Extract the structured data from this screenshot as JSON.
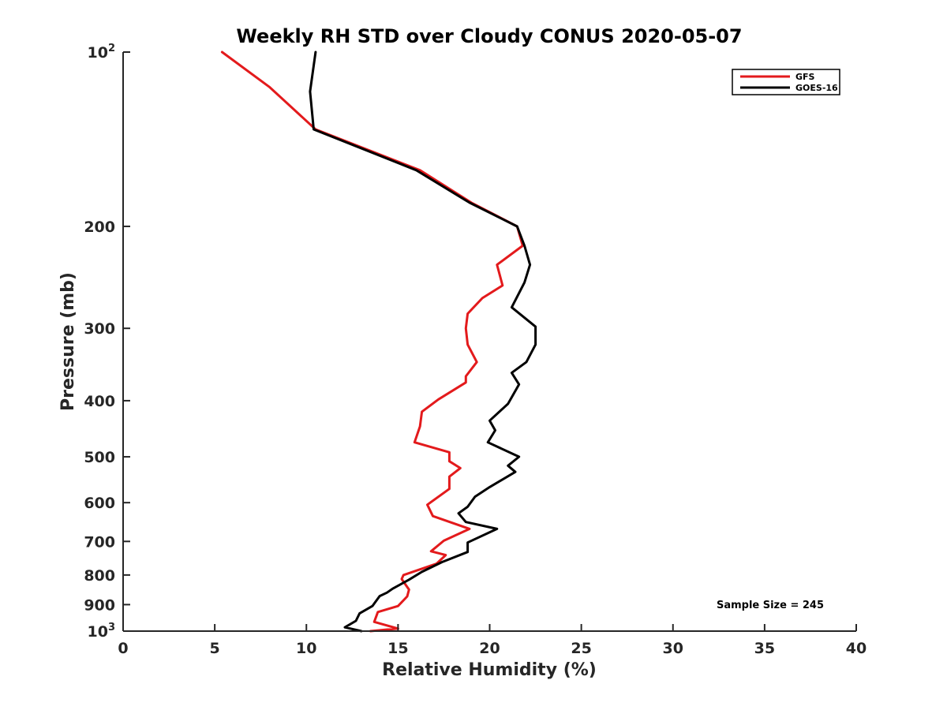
{
  "chart_data": {
    "type": "line",
    "title": "Weekly RH STD over Cloudy CONUS 2020-05-07",
    "xlabel": "Relative Humidity (%)",
    "ylabel": "Pressure (mb)",
    "xlim": [
      0,
      40
    ],
    "ylim": [
      100,
      1000
    ],
    "y_scale": "log",
    "y_reversed": true,
    "x_ticks": [
      "0",
      "5",
      "10",
      "15",
      "20",
      "25",
      "30",
      "35",
      "40"
    ],
    "y_ticks": [
      {
        "value": 100,
        "base": "10",
        "exp": "2"
      },
      {
        "value": 200,
        "label": "200"
      },
      {
        "value": 300,
        "label": "300"
      },
      {
        "value": 400,
        "label": "400"
      },
      {
        "value": 500,
        "label": "500"
      },
      {
        "value": 600,
        "label": "600"
      },
      {
        "value": 700,
        "label": "700"
      },
      {
        "value": 800,
        "label": "800"
      },
      {
        "value": 900,
        "label": "900"
      },
      {
        "value": 1000,
        "base": "10",
        "exp": "3"
      }
    ],
    "grid": false,
    "legend_position": "top-right",
    "annotation": "Sample Size = 245",
    "series": [
      {
        "name": "GFS",
        "color": "#e31a1c",
        "points": [
          [
            5.4,
            100
          ],
          [
            8.0,
            115
          ],
          [
            10.5,
            136
          ],
          [
            16.2,
            160
          ],
          [
            19.0,
            182
          ],
          [
            21.5,
            200
          ],
          [
            21.8,
            216
          ],
          [
            20.4,
            233
          ],
          [
            20.7,
            253
          ],
          [
            19.6,
            266
          ],
          [
            18.8,
            283
          ],
          [
            18.7,
            300
          ],
          [
            18.8,
            320
          ],
          [
            19.3,
            343
          ],
          [
            18.7,
            363
          ],
          [
            18.7,
            372
          ],
          [
            17.2,
            398
          ],
          [
            16.3,
            418
          ],
          [
            16.2,
            443
          ],
          [
            15.9,
            472
          ],
          [
            17.8,
            491
          ],
          [
            17.8,
            509
          ],
          [
            18.4,
            523
          ],
          [
            17.8,
            541
          ],
          [
            17.8,
            568
          ],
          [
            16.6,
            605
          ],
          [
            16.9,
            633
          ],
          [
            18.9,
            666
          ],
          [
            17.5,
            698
          ],
          [
            16.8,
            728
          ],
          [
            17.6,
            739
          ],
          [
            17.1,
            765
          ],
          [
            15.3,
            800
          ],
          [
            15.2,
            813
          ],
          [
            15.6,
            848
          ],
          [
            15.5,
            871
          ],
          [
            15.0,
            905
          ],
          [
            13.9,
            927
          ],
          [
            13.7,
            964
          ],
          [
            15.0,
            990
          ],
          [
            13.5,
            1000
          ]
        ]
      },
      {
        "name": "GOES-16",
        "color": "#000000",
        "points": [
          [
            10.5,
            100
          ],
          [
            10.2,
            117
          ],
          [
            10.4,
            136
          ],
          [
            16.0,
            160
          ],
          [
            18.9,
            182
          ],
          [
            21.5,
            200
          ],
          [
            21.9,
            216
          ],
          [
            22.2,
            233
          ],
          [
            21.9,
            250
          ],
          [
            21.2,
            276
          ],
          [
            22.5,
            298
          ],
          [
            22.5,
            320
          ],
          [
            22.0,
            343
          ],
          [
            21.2,
            358
          ],
          [
            21.6,
            375
          ],
          [
            21.0,
            405
          ],
          [
            20.0,
            433
          ],
          [
            20.3,
            450
          ],
          [
            19.9,
            472
          ],
          [
            21.6,
            500
          ],
          [
            21.0,
            518
          ],
          [
            21.4,
            531
          ],
          [
            20.0,
            564
          ],
          [
            19.2,
            586
          ],
          [
            18.8,
            610
          ],
          [
            18.3,
            626
          ],
          [
            18.7,
            648
          ],
          [
            20.4,
            666
          ],
          [
            18.8,
            703
          ],
          [
            18.8,
            730
          ],
          [
            17.4,
            760
          ],
          [
            16.3,
            790
          ],
          [
            15.6,
            815
          ],
          [
            14.7,
            845
          ],
          [
            14.4,
            858
          ],
          [
            14.0,
            870
          ],
          [
            13.6,
            905
          ],
          [
            12.9,
            932
          ],
          [
            12.7,
            960
          ],
          [
            12.1,
            985
          ],
          [
            13.0,
            1000
          ]
        ]
      }
    ]
  }
}
